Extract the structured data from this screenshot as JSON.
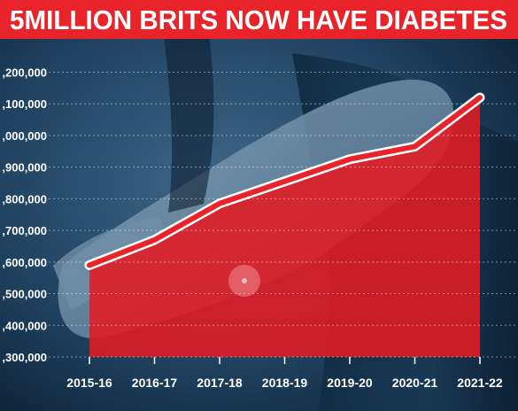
{
  "title": "5MILLION BRITS NOW HAVE DIABETES",
  "colors": {
    "title_band": "#e8232a",
    "title_text": "#ffffff",
    "area_fill": "#e31b23",
    "line": "#e8232a",
    "line_outline": "#ffffff",
    "grid": "#ffffff",
    "tick_text": "#ffffff"
  },
  "chart_data": {
    "type": "area",
    "title": "5MILLION BRITS NOW HAVE DIABETES",
    "xlabel": "",
    "ylabel": "",
    "categories": [
      "2015-16",
      "2016-17",
      "2017-18",
      "2018-19",
      "2019-20",
      "2020-21",
      "2021-22"
    ],
    "series": [
      {
        "values": [
          3590000,
          3670000,
          3785000,
          3855000,
          3925000,
          3965000,
          4120000
        ]
      }
    ],
    "ylim": [
      3300000,
      4200000
    ],
    "yticks": [
      3300000,
      3400000,
      3500000,
      3600000,
      3700000,
      3800000,
      3900000,
      4000000,
      4100000,
      4200000
    ],
    "ytick_labels": [
      ",300,000",
      ",400,000",
      ",500,000",
      ",600,000",
      ",700,000",
      ",800,000",
      ",900,000",
      ",000,000",
      ",100,000",
      ",200,000"
    ],
    "grid": true,
    "legend": "none"
  }
}
